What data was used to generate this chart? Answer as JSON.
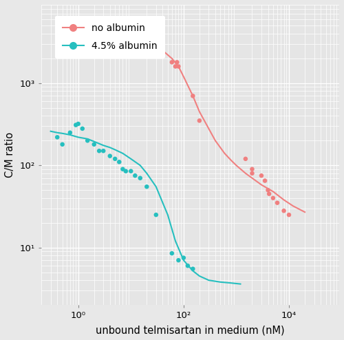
{
  "xlabel": "unbound telmisartan in medium (nM)",
  "ylabel": "C/M ratio",
  "bg_color": "#e8e8e8",
  "panel_bg": "#e5e5e5",
  "red_color": "#F08080",
  "teal_color": "#26BFBF",
  "red_dots_x": [
    30,
    60,
    70,
    75,
    80,
    150,
    200,
    1500,
    2000,
    2000,
    3000,
    3500,
    4000,
    4200,
    5000,
    6000,
    8000,
    10000
  ],
  "red_dots_y": [
    3500,
    1800,
    1600,
    1800,
    1600,
    700,
    350,
    120,
    90,
    80,
    75,
    65,
    50,
    45,
    40,
    35,
    28,
    25
  ],
  "teal_dots_x": [
    0.4,
    0.5,
    0.7,
    0.9,
    1.0,
    1.2,
    1.5,
    2.0,
    2.5,
    3.0,
    4.0,
    5.0,
    6.0,
    7.0,
    8.0,
    10,
    12,
    15,
    20,
    30,
    60,
    80,
    100,
    120,
    150
  ],
  "teal_dots_y": [
    220,
    180,
    250,
    310,
    320,
    280,
    200,
    180,
    150,
    150,
    130,
    120,
    110,
    90,
    85,
    85,
    75,
    70,
    55,
    25,
    8.5,
    7,
    7.5,
    6,
    5.5
  ],
  "red_line_x": [
    10,
    15,
    20,
    30,
    40,
    60,
    80,
    100,
    150,
    200,
    400,
    600,
    800,
    1000,
    1500,
    2000,
    3000,
    5000,
    8000,
    12000,
    20000
  ],
  "red_line_y": [
    4000,
    3800,
    3500,
    3000,
    2500,
    2000,
    1600,
    1200,
    700,
    450,
    200,
    140,
    115,
    100,
    80,
    70,
    58,
    48,
    38,
    32,
    27
  ],
  "teal_line_x": [
    0.3,
    0.4,
    0.5,
    0.7,
    1.0,
    1.5,
    2.0,
    3.0,
    4.0,
    5.0,
    7.0,
    10,
    15,
    20,
    30,
    50,
    70,
    100,
    150,
    200,
    300,
    500,
    800,
    1200
  ],
  "teal_line_y": [
    260,
    250,
    245,
    235,
    220,
    210,
    195,
    175,
    165,
    155,
    140,
    120,
    100,
    80,
    55,
    25,
    12,
    7,
    5.2,
    4.5,
    4.0,
    3.8,
    3.7,
    3.6
  ],
  "xlim": [
    0.3,
    30000
  ],
  "ylim": [
    3.0,
    8000
  ],
  "xtick_vals": [
    1,
    100,
    10000
  ],
  "ytick_vals": [
    10,
    100,
    1000
  ],
  "legend_labels": [
    "no albumin",
    "4.5% albumin"
  ]
}
